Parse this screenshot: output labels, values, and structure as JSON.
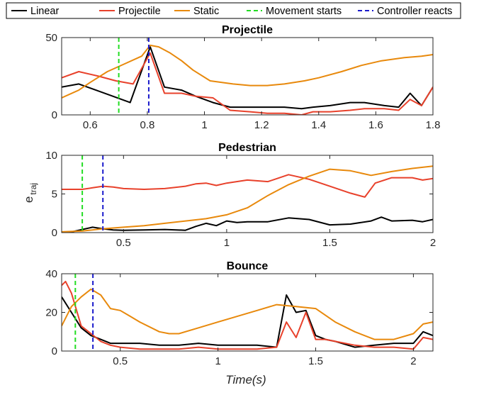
{
  "colors": {
    "linear": "#000000",
    "projectile": "#e8412b",
    "static": "#e8890c",
    "movement_starts": "#22dd22",
    "controller_reacts": "#1a1acc"
  },
  "legend": {
    "placement": "top",
    "entries": [
      {
        "key": "linear",
        "label": "Linear",
        "style": "solid"
      },
      {
        "key": "projectile",
        "label": "Projectile",
        "style": "solid"
      },
      {
        "key": "static",
        "label": "Static",
        "style": "solid"
      },
      {
        "key": "movement_starts",
        "label": "Movement starts",
        "style": "dashed"
      },
      {
        "key": "controller_reacts",
        "label": "Controller reacts",
        "style": "dashed"
      }
    ]
  },
  "ylabel": {
    "base": "e",
    "sub": "traj"
  },
  "xlabel": "Time(s)",
  "chart_data": [
    {
      "type": "line",
      "title": "Projectile",
      "xlim": [
        0.5,
        1.8
      ],
      "ylim": [
        0,
        50
      ],
      "xticks": [
        0.6,
        0.8,
        1,
        1.2,
        1.4,
        1.6,
        1.8
      ],
      "xtick_labels": [
        "0.6",
        "0.8",
        "1",
        "1.2",
        "1.4",
        "1.6",
        "1.8"
      ],
      "yticks": [
        0,
        50
      ],
      "ytick_labels": [
        "0",
        "50"
      ],
      "grid": false,
      "markers": {
        "movement_starts": 0.7,
        "controller_reacts": 0.805
      },
      "series": [
        {
          "key": "linear",
          "x": [
            0.5,
            0.56,
            0.62,
            0.68,
            0.74,
            0.81,
            0.86,
            0.92,
            0.97,
            1.03,
            1.09,
            1.16,
            1.22,
            1.28,
            1.34,
            1.38,
            1.44,
            1.51,
            1.56,
            1.63,
            1.68,
            1.72,
            1.76,
            1.8
          ],
          "y": [
            18,
            20,
            16,
            12,
            8,
            44,
            18,
            16,
            12,
            8,
            5,
            5,
            5,
            5,
            4,
            5,
            6,
            8,
            8,
            6,
            5,
            14,
            6,
            18
          ]
        },
        {
          "key": "projectile",
          "x": [
            0.5,
            0.56,
            0.63,
            0.69,
            0.75,
            0.81,
            0.86,
            0.92,
            0.97,
            1.03,
            1.09,
            1.16,
            1.22,
            1.28,
            1.34,
            1.38,
            1.44,
            1.51,
            1.56,
            1.63,
            1.68,
            1.72,
            1.76,
            1.8
          ],
          "y": [
            24,
            28,
            25,
            22,
            20,
            40,
            14,
            14,
            12,
            11,
            3,
            2,
            1,
            1,
            0,
            2,
            2,
            3,
            4,
            4,
            3,
            10,
            6,
            18
          ]
        },
        {
          "key": "static",
          "x": [
            0.5,
            0.56,
            0.6,
            0.66,
            0.72,
            0.78,
            0.81,
            0.84,
            0.88,
            0.92,
            0.96,
            1.02,
            1.1,
            1.16,
            1.22,
            1.28,
            1.35,
            1.4,
            1.48,
            1.55,
            1.62,
            1.7,
            1.76,
            1.8
          ],
          "y": [
            11,
            16,
            21,
            28,
            33,
            38,
            45,
            44,
            40,
            35,
            29,
            22,
            20,
            19,
            19,
            20,
            22,
            24,
            28,
            32,
            35,
            37,
            38,
            39
          ]
        }
      ]
    },
    {
      "type": "line",
      "title": "Pedestrian",
      "xlim": [
        0.2,
        2
      ],
      "ylim": [
        0,
        10
      ],
      "xticks": [
        0.5,
        1,
        1.5,
        2
      ],
      "xtick_labels": [
        "0.5",
        "1",
        "1.5",
        "2"
      ],
      "yticks": [
        0,
        5,
        10
      ],
      "ytick_labels": [
        "0",
        "5",
        "10"
      ],
      "grid": false,
      "markers": {
        "movement_starts": 0.3,
        "controller_reacts": 0.4
      },
      "series": [
        {
          "key": "linear",
          "x": [
            0.2,
            0.25,
            0.3,
            0.35,
            0.4,
            0.45,
            0.5,
            0.6,
            0.7,
            0.8,
            0.85,
            0.9,
            0.95,
            1.0,
            1.05,
            1.1,
            1.2,
            1.3,
            1.4,
            1.5,
            1.6,
            1.7,
            1.75,
            1.8,
            1.9,
            1.95,
            2.0
          ],
          "y": [
            0.05,
            0.1,
            0.4,
            0.7,
            0.5,
            0.35,
            0.3,
            0.35,
            0.4,
            0.3,
            0.8,
            1.2,
            0.9,
            1.5,
            1.3,
            1.4,
            1.4,
            1.9,
            1.7,
            1.0,
            1.1,
            1.5,
            2.0,
            1.5,
            1.6,
            1.4,
            1.7
          ]
        },
        {
          "key": "projectile",
          "x": [
            0.2,
            0.3,
            0.35,
            0.4,
            0.45,
            0.5,
            0.6,
            0.7,
            0.8,
            0.85,
            0.9,
            0.95,
            1.0,
            1.1,
            1.2,
            1.3,
            1.4,
            1.5,
            1.6,
            1.67,
            1.72,
            1.8,
            1.9,
            1.95,
            2.0
          ],
          "y": [
            5.6,
            5.6,
            5.8,
            6.0,
            5.9,
            5.7,
            5.6,
            5.7,
            6.0,
            6.3,
            6.4,
            6.1,
            6.4,
            6.8,
            6.6,
            7.5,
            6.9,
            6.0,
            5.1,
            4.6,
            6.4,
            7.1,
            7.1,
            6.8,
            7.0
          ]
        },
        {
          "key": "static",
          "x": [
            0.2,
            0.3,
            0.4,
            0.5,
            0.6,
            0.7,
            0.8,
            0.9,
            1.0,
            1.1,
            1.2,
            1.3,
            1.4,
            1.5,
            1.6,
            1.7,
            1.8,
            1.9,
            2.0
          ],
          "y": [
            0.1,
            0.2,
            0.5,
            0.7,
            0.9,
            1.2,
            1.5,
            1.8,
            2.3,
            3.2,
            4.8,
            6.2,
            7.3,
            8.2,
            8.0,
            7.4,
            7.9,
            8.3,
            8.6
          ]
        }
      ]
    },
    {
      "type": "line",
      "title": "Bounce",
      "xlim": [
        0.2,
        2.1
      ],
      "ylim": [
        0,
        40
      ],
      "xticks": [
        0.5,
        1,
        1.5,
        2
      ],
      "xtick_labels": [
        "0.5",
        "1",
        "1.5",
        "2"
      ],
      "yticks": [
        0,
        20,
        40
      ],
      "ytick_labels": [
        "0",
        "20",
        "40"
      ],
      "grid": false,
      "markers": {
        "movement_starts": 0.27,
        "controller_reacts": 0.36
      },
      "series": [
        {
          "key": "linear",
          "x": [
            0.2,
            0.25,
            0.3,
            0.35,
            0.4,
            0.45,
            0.5,
            0.6,
            0.7,
            0.8,
            0.9,
            1.0,
            1.1,
            1.2,
            1.3,
            1.35,
            1.4,
            1.45,
            1.5,
            1.55,
            1.6,
            1.7,
            1.8,
            1.9,
            2.0,
            2.05,
            2.1
          ],
          "y": [
            28,
            20,
            12,
            8,
            6,
            4,
            4,
            4,
            3,
            3,
            4,
            3,
            3,
            3,
            2,
            29,
            20,
            21,
            8,
            6,
            5,
            2,
            3,
            4,
            4,
            10,
            8
          ]
        },
        {
          "key": "projectile",
          "x": [
            0.2,
            0.22,
            0.25,
            0.3,
            0.35,
            0.4,
            0.45,
            0.5,
            0.6,
            0.7,
            0.8,
            0.9,
            1.0,
            1.1,
            1.2,
            1.3,
            1.35,
            1.4,
            1.45,
            1.5,
            1.55,
            1.6,
            1.7,
            1.8,
            1.9,
            2.0,
            2.05,
            2.1
          ],
          "y": [
            34,
            36,
            30,
            13,
            9,
            5,
            3,
            2,
            1,
            1,
            1,
            2,
            1,
            1,
            1,
            2,
            15,
            7,
            20,
            6,
            6,
            5,
            3,
            2,
            2,
            1,
            7,
            6
          ]
        },
        {
          "key": "static",
          "x": [
            0.2,
            0.25,
            0.3,
            0.35,
            0.4,
            0.45,
            0.5,
            0.55,
            0.6,
            0.7,
            0.75,
            0.8,
            0.9,
            1.0,
            1.1,
            1.2,
            1.3,
            1.4,
            1.5,
            1.6,
            1.7,
            1.8,
            1.9,
            2.0,
            2.05,
            2.1
          ],
          "y": [
            13,
            23,
            28,
            32,
            29,
            22,
            21,
            18,
            15,
            10,
            9,
            9,
            12,
            15,
            18,
            21,
            24,
            23,
            22,
            15,
            10,
            6,
            6,
            9,
            14,
            15
          ]
        }
      ]
    }
  ]
}
